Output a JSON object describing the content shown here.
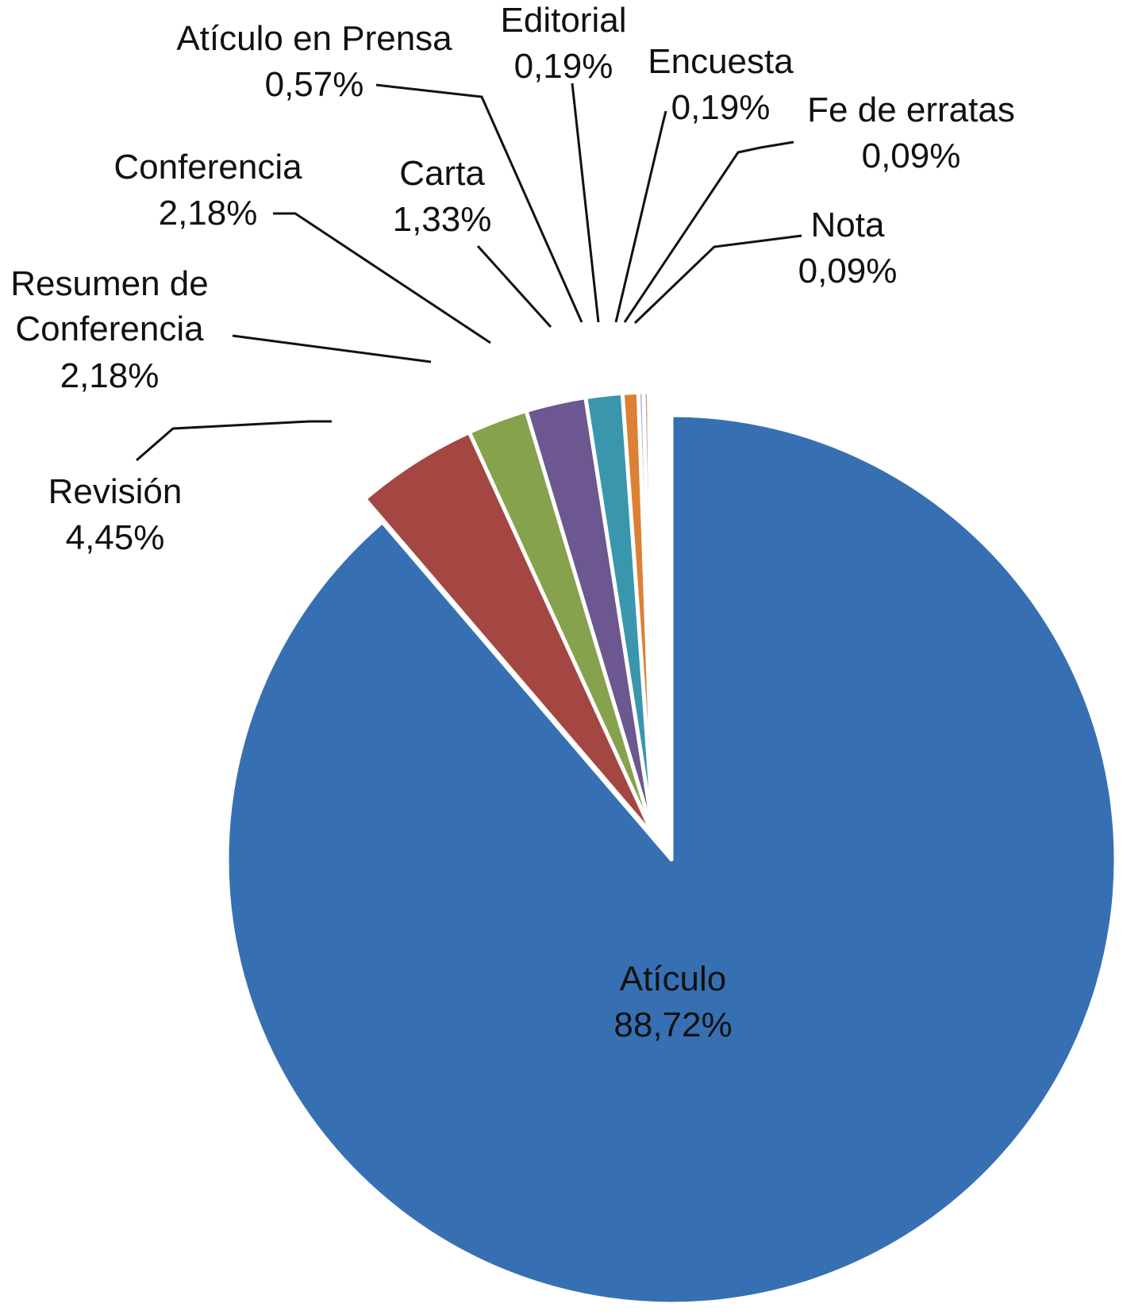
{
  "chart_data": {
    "type": "pie",
    "title": "",
    "slices": [
      {
        "label": "Atículo",
        "value": 88.72,
        "display": "88,72%",
        "color": "#3770b2",
        "exploded": false
      },
      {
        "label": "Revisión",
        "value": 4.45,
        "display": "4,45%",
        "color": "#a44642",
        "exploded": true
      },
      {
        "label": "Resumen de Conferencia",
        "label_lines": [
          "Resumen de",
          "Conferencia"
        ],
        "value": 2.18,
        "display": "2,18%",
        "color": "#87a24c",
        "exploded": true
      },
      {
        "label": "Conferencia",
        "value": 2.18,
        "display": "2,18%",
        "color": "#6c5790",
        "exploded": true
      },
      {
        "label": "Carta",
        "value": 1.33,
        "display": "1,33%",
        "color": "#3a96ad",
        "exploded": true
      },
      {
        "label": "Atículo en Prensa",
        "value": 0.57,
        "display": "0,57%",
        "color": "#dc8034",
        "exploded": true
      },
      {
        "label": "Editorial",
        "value": 0.19,
        "display": "0,19%",
        "color": "#a1b5d8",
        "exploded": true
      },
      {
        "label": "Encuesta",
        "value": 0.19,
        "display": "0,19%",
        "color": "#d79a98",
        "exploded": true
      },
      {
        "label": "Fe de erratas",
        "value": 0.09,
        "display": "0,09%",
        "color": "#bfd49a",
        "exploded": true
      },
      {
        "label": "Nota",
        "value": 0.09,
        "display": "0,09%",
        "color": "#b1a6c6",
        "exploded": true
      }
    ]
  }
}
